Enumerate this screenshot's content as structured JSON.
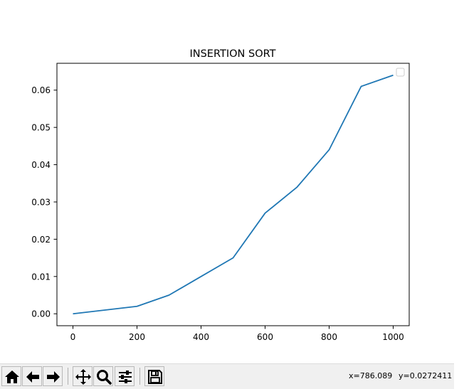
{
  "chart_data": {
    "type": "line",
    "title": "INSERTION SORT",
    "xlabel": "",
    "ylabel": "",
    "x": [
      0,
      200,
      300,
      400,
      500,
      600,
      700,
      800,
      900,
      1000
    ],
    "series": [
      {
        "values": [
          0.0,
          0.002,
          0.005,
          0.01,
          0.015,
          0.027,
          0.034,
          0.044,
          0.061,
          0.064
        ],
        "color": "#1f77b4"
      }
    ],
    "xlim": [
      -50,
      1050
    ],
    "ylim": [
      -0.0032,
      0.0672
    ],
    "xticks": [
      0,
      200,
      400,
      600,
      800,
      1000
    ],
    "xtick_labels": [
      "0",
      "200",
      "400",
      "600",
      "800",
      "1000"
    ],
    "yticks": [
      0.0,
      0.01,
      0.02,
      0.03,
      0.04,
      0.05,
      0.06
    ],
    "ytick_labels": [
      "0.00",
      "0.01",
      "0.02",
      "0.03",
      "0.04",
      "0.05",
      "0.06"
    ],
    "grid": false,
    "legend": "upper-right, empty"
  },
  "toolbar": {
    "buttons": [
      {
        "name": "home-button",
        "icon": "home-icon"
      },
      {
        "name": "back-button",
        "icon": "arrow-left-icon"
      },
      {
        "name": "forward-button",
        "icon": "arrow-right-icon"
      },
      {
        "name": "pan-button",
        "icon": "move-icon"
      },
      {
        "name": "zoom-button",
        "icon": "magnifier-icon"
      },
      {
        "name": "configure-subplots-button",
        "icon": "sliders-icon"
      },
      {
        "name": "save-button",
        "icon": "floppy-disk-icon"
      }
    ],
    "coord_x": "x=786.089",
    "coord_y": "y=0.0272411"
  }
}
